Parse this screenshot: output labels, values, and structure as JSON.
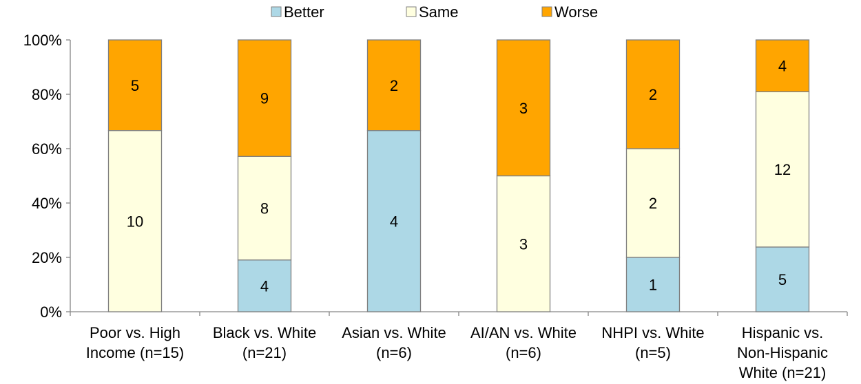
{
  "chart_data": {
    "type": "bar",
    "stacked": "percent",
    "categories": [
      [
        "Poor vs. High",
        "Income (n=15)"
      ],
      [
        "Black vs. White",
        "(n=21)"
      ],
      [
        "Asian vs. White",
        "(n=6)"
      ],
      [
        "AI/AN vs. White",
        "(n=6)"
      ],
      [
        "NHPI vs. White",
        "(n=5)"
      ],
      [
        "Hispanic vs.",
        "Non-Hispanic",
        "White (n=21)"
      ]
    ],
    "series": [
      {
        "name": "Better",
        "color": "#ADD8E6",
        "values": [
          0,
          4,
          4,
          0,
          1,
          5
        ]
      },
      {
        "name": "Same",
        "color": "#FFFFE0",
        "values": [
          10,
          8,
          0,
          3,
          2,
          12
        ]
      },
      {
        "name": "Worse",
        "color": "#FFA500",
        "values": [
          5,
          9,
          2,
          3,
          2,
          4
        ]
      }
    ],
    "y_ticks": [
      "0%",
      "20%",
      "40%",
      "60%",
      "80%",
      "100%"
    ],
    "ylim": [
      0,
      100
    ],
    "legend_position": "top",
    "grid": false,
    "title": "",
    "xlabel": "",
    "ylabel": ""
  }
}
